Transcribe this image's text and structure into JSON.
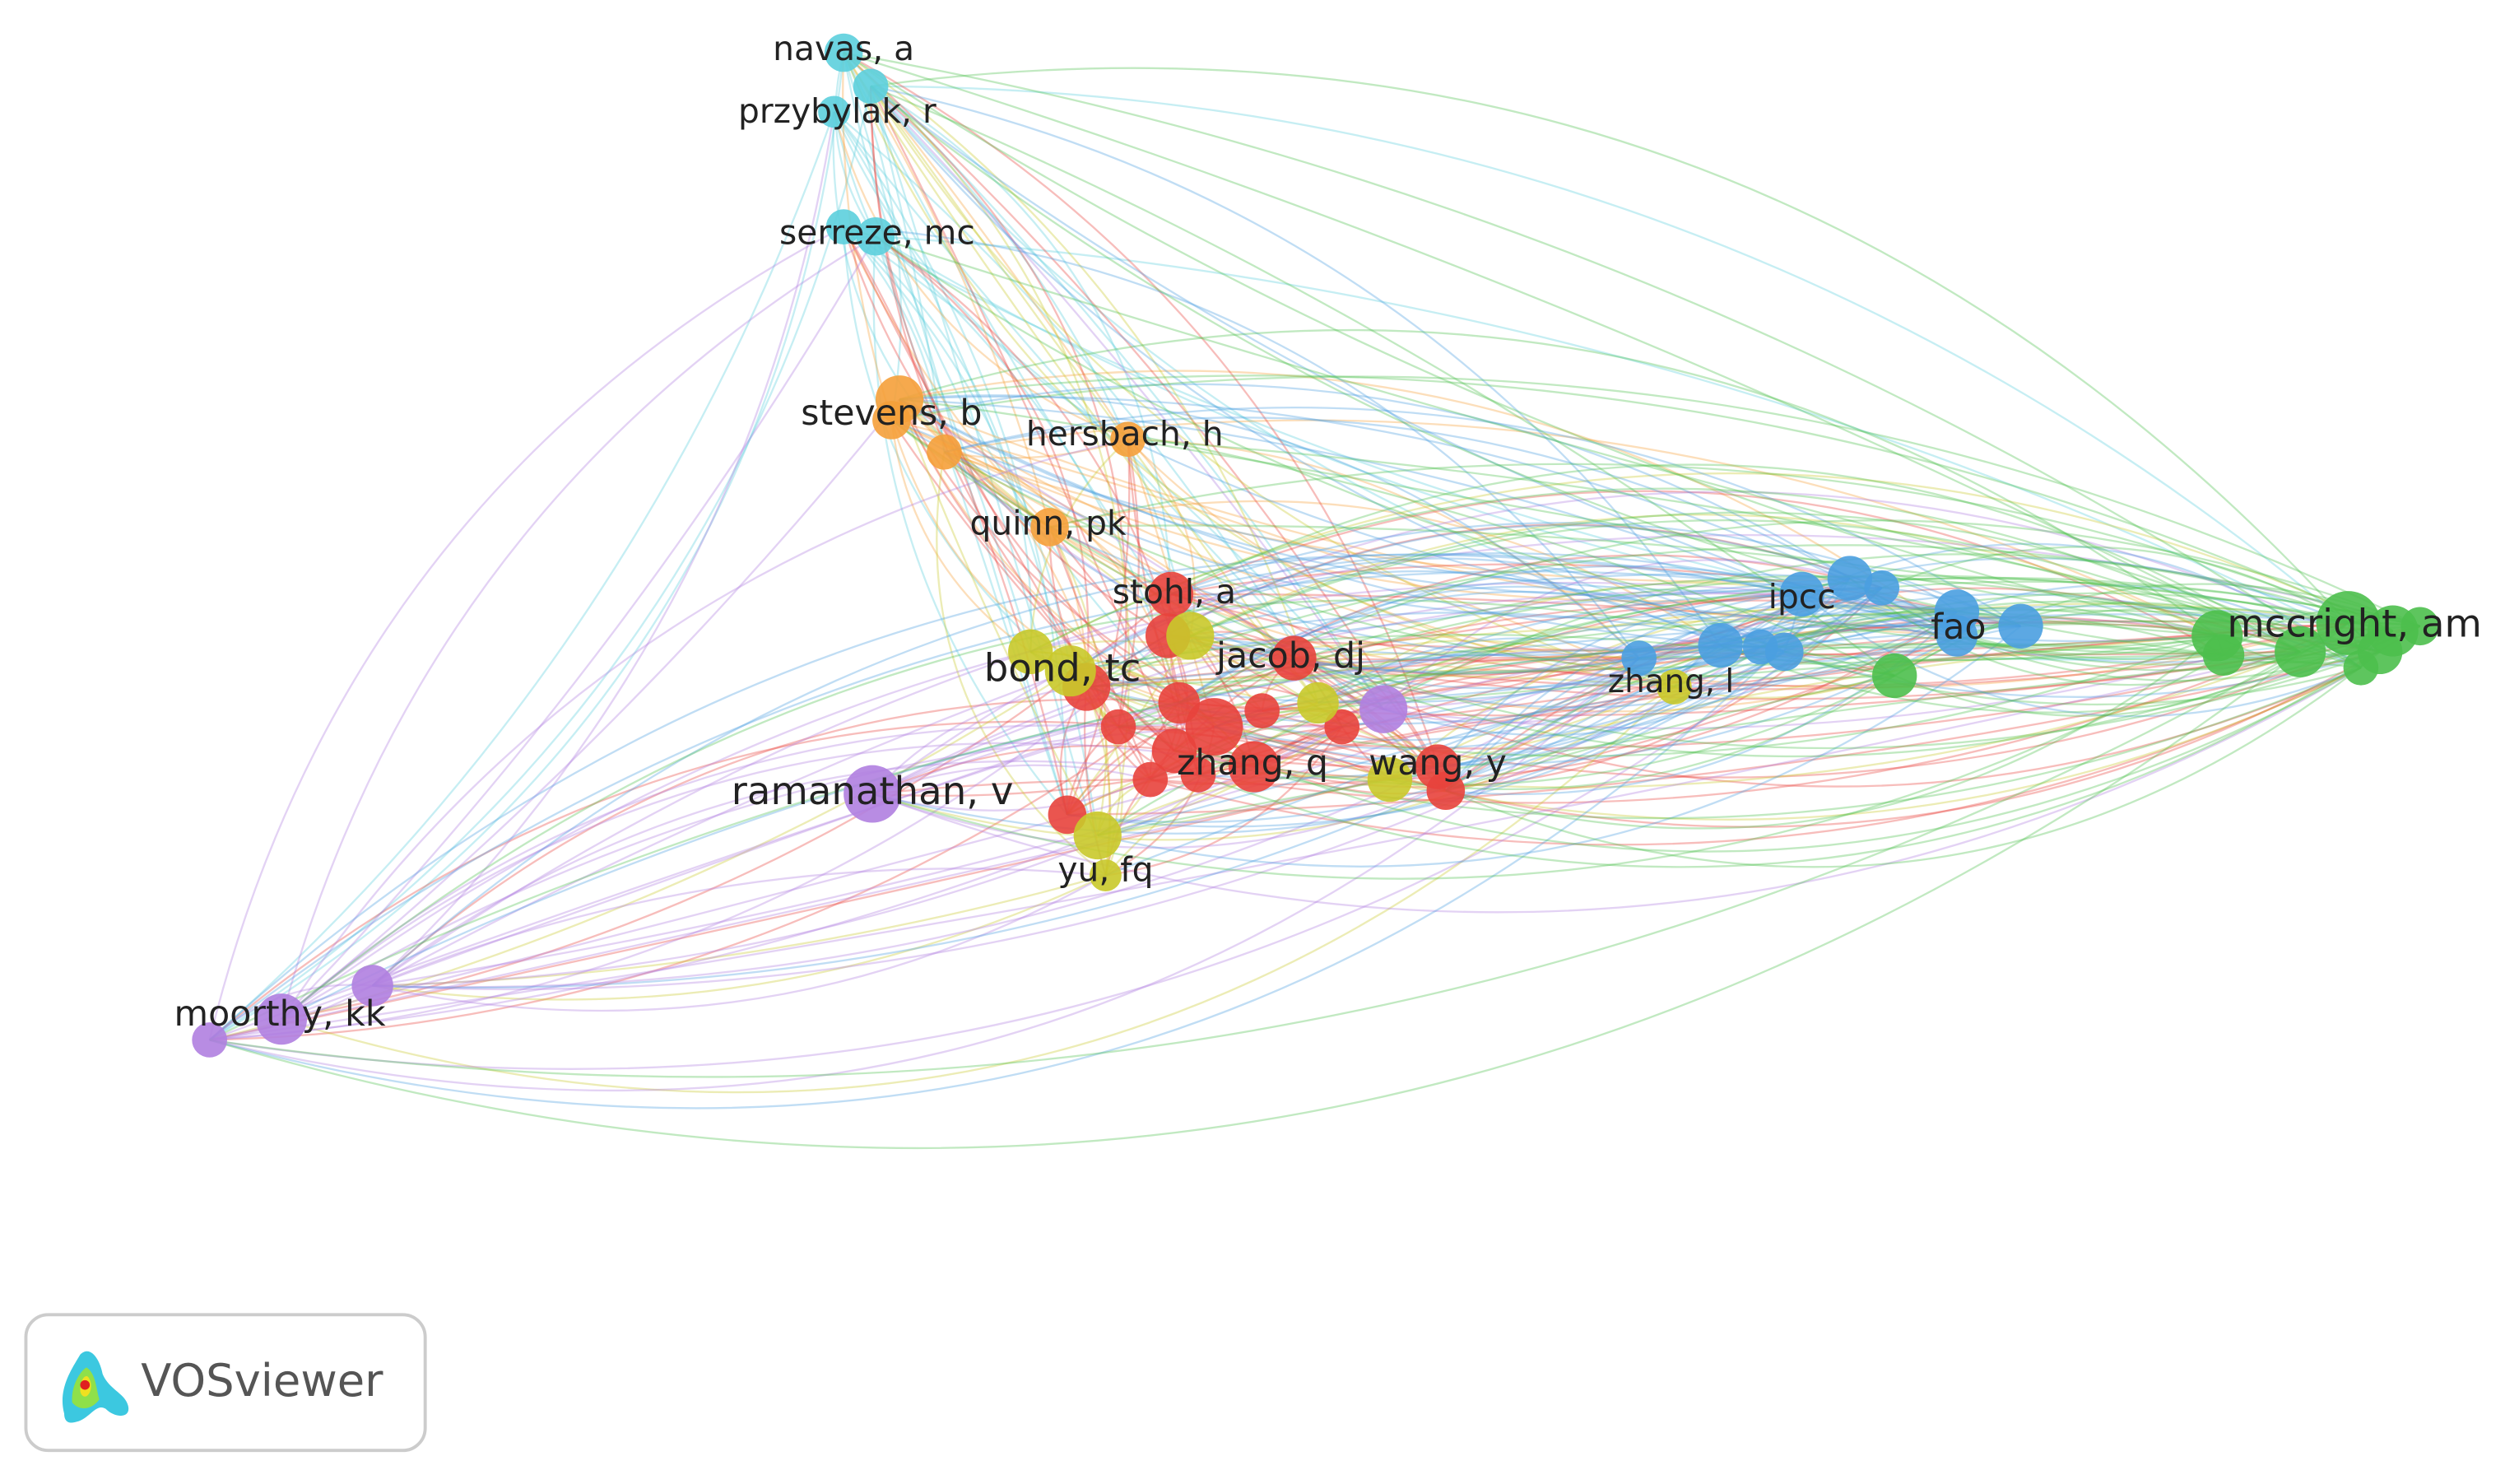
{
  "nodes": [
    {
      "label": "navas, a"
    },
    {
      "label": "przybylak, r"
    },
    {
      "label": "serreze, mc"
    },
    {
      "label": "stevens, b"
    },
    {
      "label": "hersbach, h"
    },
    {
      "label": "quinn, pk"
    },
    {
      "label": "stohl, a"
    },
    {
      "label": "bond, tc"
    },
    {
      "label": "jacob, dj"
    },
    {
      "label": "ramanathan, v"
    },
    {
      "label": "zhang, q"
    },
    {
      "label": "wang, y"
    },
    {
      "label": "yu, fq"
    },
    {
      "label": "moorthy, kk"
    },
    {
      "label": "ipcc"
    },
    {
      "label": "fao"
    },
    {
      "label": "zhang, l"
    },
    {
      "label": "mccright, am"
    }
  ],
  "logo": {
    "text": "VOSviewer"
  }
}
